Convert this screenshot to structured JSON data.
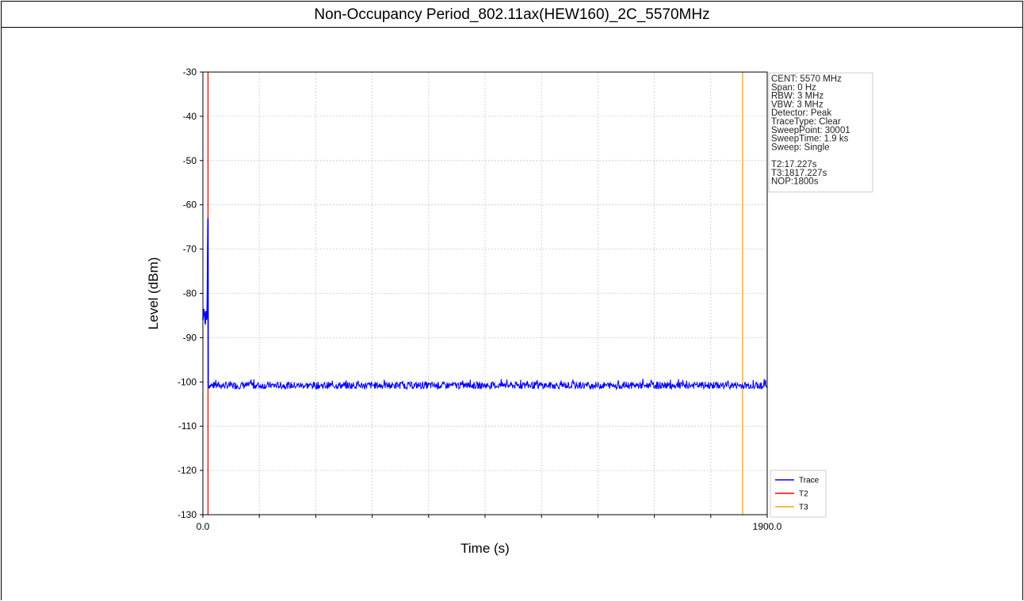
{
  "page_title": "Non-Occupancy Period_802.11ax(HEW160)_2C_5570MHz",
  "chart_data": {
    "type": "line",
    "xlabel": "Time (s)",
    "ylabel": "Level (dBm)",
    "xlim": [
      0,
      1900
    ],
    "ylim": [
      -130,
      -30
    ],
    "x_tick_labels": [
      "0.0",
      "1900.0"
    ],
    "y_ticks": [
      -30,
      -40,
      -50,
      -60,
      -70,
      -80,
      -90,
      -100,
      -110,
      -120,
      -130
    ],
    "grid": true,
    "series": [
      {
        "name": "Trace",
        "color": "#0000ff",
        "x": [
          0,
          3,
          6,
          8,
          10,
          12,
          14,
          15,
          16,
          17,
          17.227,
          18,
          30,
          100,
          200,
          300,
          400,
          500,
          600,
          700,
          800,
          900,
          1000,
          1100,
          1200,
          1300,
          1400,
          1500,
          1600,
          1700,
          1800,
          1817,
          1900
        ],
        "y": [
          -86,
          -83.5,
          -85,
          -87,
          -84,
          -86,
          -85,
          -80,
          -70,
          -63,
          -64,
          -101,
          -100.8,
          -100.8,
          -100.8,
          -100.8,
          -100.8,
          -100.8,
          -100.8,
          -100.8,
          -100.8,
          -100.8,
          -100.8,
          -100.8,
          -100.8,
          -100.8,
          -100.8,
          -100.8,
          -100.8,
          -100.8,
          -100.8,
          -100.8,
          -100.8
        ],
        "noise_band": [
          -101.6,
          -99.8
        ]
      }
    ],
    "markers": [
      {
        "name": "T2",
        "x": 17.227,
        "color": "#ff0000"
      },
      {
        "name": "T3",
        "x": 1817.227,
        "color": "#ffa500"
      }
    ],
    "legend": {
      "placement": "bottom-right",
      "entries": [
        {
          "label": "Trace",
          "color": "#0000ff"
        },
        {
          "label": "T2",
          "color": "#ff0000"
        },
        {
          "label": "T3",
          "color": "#ffa500"
        }
      ]
    },
    "info_box": {
      "placement": "top-right",
      "lines": [
        "CENT: 5570 MHz",
        "Span: 0 Hz",
        "RBW: 3 MHz",
        "VBW: 3 MHz",
        "Detector: Peak",
        "TraceType: Clear",
        "SweepPoint: 30001",
        "SweepTime: 1.9 ks",
        "Sweep: Single",
        "",
        "T2:17.227s",
        "T3:1817.227s",
        "NOP:1800s"
      ]
    }
  }
}
